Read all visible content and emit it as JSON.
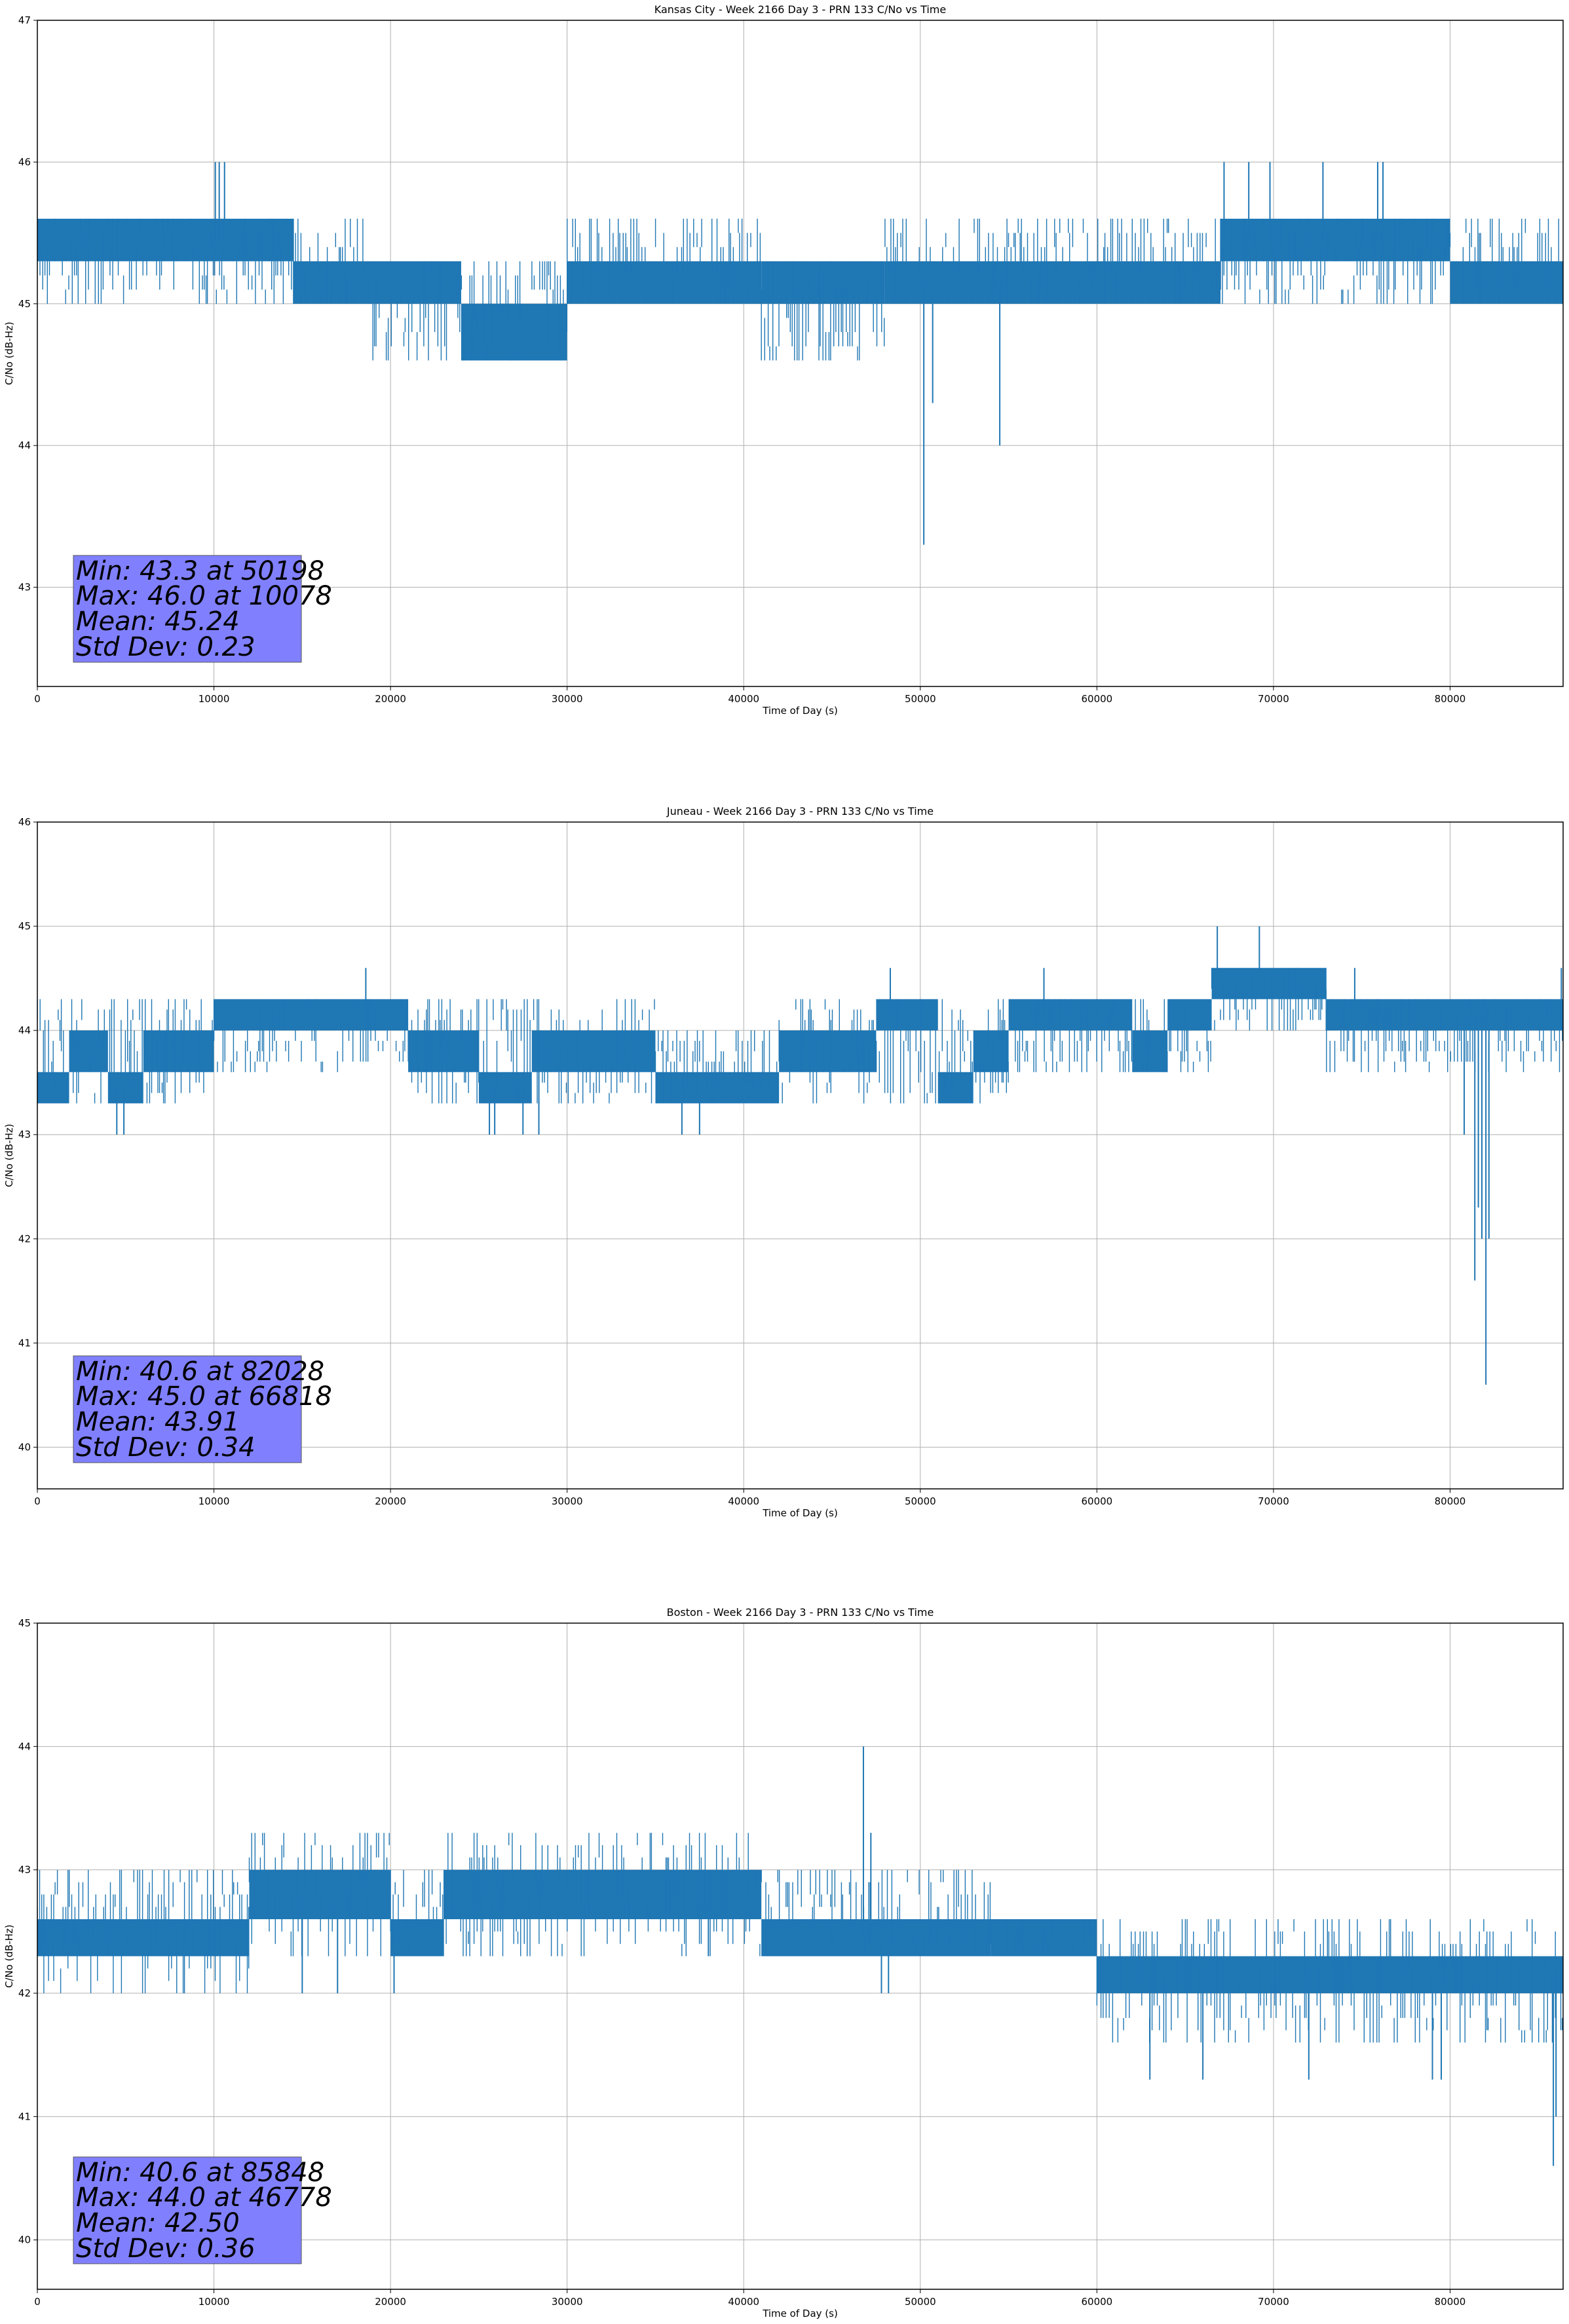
{
  "chart_data": [
    {
      "type": "line",
      "title": "Kansas City - Week 2166 Day 3 - PRN 133 C/No vs Time",
      "xlabel": "Time of Day (s)",
      "ylabel": "C/No (dB-Hz)",
      "xlim": [
        0,
        86400
      ],
      "ylim": [
        42.3,
        47
      ],
      "xticks": [
        0,
        10000,
        20000,
        30000,
        40000,
        50000,
        60000,
        70000,
        80000
      ],
      "yticks": [
        43,
        44,
        45,
        46,
        47
      ],
      "grid": true,
      "color": "#1f77b4",
      "stats_box_color": "#8080ff",
      "stats": [
        "Min: 43.3 at 50198",
        "Max: 46.0 at 10078",
        "Mean: 45.24",
        "Std Dev: 0.23"
      ],
      "series": [
        {
          "band_segments": [
            {
              "x": [
                0,
                14500
              ],
              "lo": 45.3,
              "hi": 45.6
            },
            {
              "x": [
                14500,
                19000
              ],
              "lo": 45.0,
              "hi": 45.3
            },
            {
              "x": [
                19000,
                24000
              ],
              "lo": 45.0,
              "hi": 45.3
            },
            {
              "x": [
                24000,
                30000
              ],
              "lo": 44.6,
              "hi": 45.0
            },
            {
              "x": [
                30000,
                41000
              ],
              "lo": 45.0,
              "hi": 45.3
            },
            {
              "x": [
                41000,
                48000
              ],
              "lo": 45.0,
              "hi": 45.3
            },
            {
              "x": [
                48000,
                62000
              ],
              "lo": 45.0,
              "hi": 45.3
            },
            {
              "x": [
                62000,
                67000
              ],
              "lo": 45.0,
              "hi": 45.3
            },
            {
              "x": [
                67000,
                80000
              ],
              "lo": 45.3,
              "hi": 45.6
            },
            {
              "x": [
                80000,
                86400
              ],
              "lo": 45.0,
              "hi": 45.3
            }
          ],
          "flicker_ranges": [
            {
              "x": [
                0,
                14500
              ],
              "lo": 45.0,
              "hi": 45.6
            },
            {
              "x": [
                14500,
                19000
              ],
              "lo": 45.0,
              "hi": 45.6
            },
            {
              "x": [
                19000,
                30000
              ],
              "lo": 44.6,
              "hi": 45.3
            },
            {
              "x": [
                30000,
                41000
              ],
              "lo": 45.0,
              "hi": 45.6
            },
            {
              "x": [
                41000,
                48000
              ],
              "lo": 44.6,
              "hi": 45.3
            },
            {
              "x": [
                48000,
                62000
              ],
              "lo": 45.0,
              "hi": 45.6
            },
            {
              "x": [
                62000,
                67000
              ],
              "lo": 45.0,
              "hi": 45.6
            },
            {
              "x": [
                67000,
                80000
              ],
              "lo": 45.0,
              "hi": 45.6
            },
            {
              "x": [
                80000,
                86400
              ],
              "lo": 45.0,
              "hi": 45.6
            }
          ],
          "spikes": [
            {
              "x": 10078,
              "y": 46.0
            },
            {
              "x": 10300,
              "y": 46.0
            },
            {
              "x": 10600,
              "y": 46.0
            },
            {
              "x": 50198,
              "y": 43.3
            },
            {
              "x": 50700,
              "y": 44.3
            },
            {
              "x": 54500,
              "y": 44.0
            },
            {
              "x": 67200,
              "y": 46.0
            },
            {
              "x": 68600,
              "y": 46.0
            },
            {
              "x": 69800,
              "y": 46.0
            },
            {
              "x": 72800,
              "y": 46.0
            },
            {
              "x": 75900,
              "y": 46.0
            },
            {
              "x": 76200,
              "y": 46.0
            }
          ]
        }
      ]
    },
    {
      "type": "line",
      "title": "Juneau - Week 2166 Day 3 - PRN 133 C/No vs Time",
      "xlabel": "Time of Day (s)",
      "ylabel": "C/No (dB-Hz)",
      "xlim": [
        0,
        86400
      ],
      "ylim": [
        39.6,
        46
      ],
      "xticks": [
        0,
        10000,
        20000,
        30000,
        40000,
        50000,
        60000,
        70000,
        80000
      ],
      "yticks": [
        40,
        41,
        42,
        43,
        44,
        45,
        46
      ],
      "grid": true,
      "color": "#1f77b4",
      "stats_box_color": "#8080ff",
      "stats": [
        "Min: 40.6 at 82028",
        "Max: 45.0 at 66818",
        "Mean: 43.91",
        "Std Dev: 0.34"
      ],
      "series": [
        {
          "band_segments": [
            {
              "x": [
                0,
                1800
              ],
              "lo": 43.3,
              "hi": 43.6
            },
            {
              "x": [
                1800,
                4000
              ],
              "lo": 43.6,
              "hi": 44.0
            },
            {
              "x": [
                4000,
                6000
              ],
              "lo": 43.3,
              "hi": 43.6
            },
            {
              "x": [
                6000,
                10000
              ],
              "lo": 43.6,
              "hi": 44.0
            },
            {
              "x": [
                10000,
                21000
              ],
              "lo": 44.0,
              "hi": 44.3
            },
            {
              "x": [
                21000,
                25000
              ],
              "lo": 43.6,
              "hi": 44.0
            },
            {
              "x": [
                25000,
                28000
              ],
              "lo": 43.3,
              "hi": 43.6
            },
            {
              "x": [
                28000,
                35000
              ],
              "lo": 43.6,
              "hi": 44.0
            },
            {
              "x": [
                35000,
                42000
              ],
              "lo": 43.3,
              "hi": 43.6
            },
            {
              "x": [
                42000,
                47500
              ],
              "lo": 43.6,
              "hi": 44.0
            },
            {
              "x": [
                47500,
                51000
              ],
              "lo": 44.0,
              "hi": 44.3
            },
            {
              "x": [
                51000,
                53000
              ],
              "lo": 43.3,
              "hi": 43.6
            },
            {
              "x": [
                53000,
                55000
              ],
              "lo": 43.6,
              "hi": 44.0
            },
            {
              "x": [
                55000,
                62000
              ],
              "lo": 44.0,
              "hi": 44.3
            },
            {
              "x": [
                62000,
                64000
              ],
              "lo": 43.6,
              "hi": 44.0
            },
            {
              "x": [
                64000,
                66500
              ],
              "lo": 44.0,
              "hi": 44.3
            },
            {
              "x": [
                66500,
                73000
              ],
              "lo": 44.3,
              "hi": 44.6
            },
            {
              "x": [
                73000,
                86400
              ],
              "lo": 44.0,
              "hi": 44.3
            }
          ],
          "flicker_ranges": [
            {
              "x": [
                0,
                10000
              ],
              "lo": 43.3,
              "hi": 44.3
            },
            {
              "x": [
                10000,
                21000
              ],
              "lo": 43.6,
              "hi": 44.3
            },
            {
              "x": [
                21000,
                35000
              ],
              "lo": 43.3,
              "hi": 44.3
            },
            {
              "x": [
                35000,
                42000
              ],
              "lo": 43.3,
              "hi": 44.0
            },
            {
              "x": [
                42000,
                55000
              ],
              "lo": 43.3,
              "hi": 44.3
            },
            {
              "x": [
                55000,
                66500
              ],
              "lo": 43.6,
              "hi": 44.3
            },
            {
              "x": [
                66500,
                73000
              ],
              "lo": 44.0,
              "hi": 44.6
            },
            {
              "x": [
                73000,
                86400
              ],
              "lo": 43.6,
              "hi": 44.3
            }
          ],
          "spikes": [
            {
              "x": 4500,
              "y": 43.0
            },
            {
              "x": 4900,
              "y": 43.0
            },
            {
              "x": 18600,
              "y": 44.6
            },
            {
              "x": 25600,
              "y": 43.0
            },
            {
              "x": 25900,
              "y": 43.0
            },
            {
              "x": 27500,
              "y": 43.0
            },
            {
              "x": 28400,
              "y": 43.0
            },
            {
              "x": 36500,
              "y": 43.0
            },
            {
              "x": 37500,
              "y": 43.0
            },
            {
              "x": 48300,
              "y": 44.6
            },
            {
              "x": 57000,
              "y": 44.6
            },
            {
              "x": 66818,
              "y": 45.0
            },
            {
              "x": 69200,
              "y": 45.0
            },
            {
              "x": 74600,
              "y": 44.6
            },
            {
              "x": 80800,
              "y": 43.0
            },
            {
              "x": 81400,
              "y": 41.6
            },
            {
              "x": 81600,
              "y": 42.3
            },
            {
              "x": 81800,
              "y": 42.0
            },
            {
              "x": 82028,
              "y": 40.6
            },
            {
              "x": 82200,
              "y": 42.0
            },
            {
              "x": 86300,
              "y": 44.6
            }
          ]
        }
      ]
    },
    {
      "type": "line",
      "title": "Boston - Week 2166 Day 3 - PRN 133 C/No vs Time",
      "xlabel": "Time of Day (s)",
      "ylabel": "C/No (dB-Hz)",
      "xlim": [
        0,
        86400
      ],
      "ylim": [
        39.6,
        45
      ],
      "xticks": [
        0,
        10000,
        20000,
        30000,
        40000,
        50000,
        60000,
        70000,
        80000
      ],
      "yticks": [
        40,
        41,
        42,
        43,
        44,
        45
      ],
      "grid": true,
      "color": "#1f77b4",
      "stats_box_color": "#8080ff",
      "stats": [
        "Min: 40.6 at 85848",
        "Max: 44.0 at 46778",
        "Mean: 42.50",
        "Std Dev: 0.36"
      ],
      "series": [
        {
          "band_segments": [
            {
              "x": [
                0,
                12000
              ],
              "lo": 42.3,
              "hi": 42.6
            },
            {
              "x": [
                12000,
                20000
              ],
              "lo": 42.6,
              "hi": 43.0
            },
            {
              "x": [
                20000,
                23000
              ],
              "lo": 42.3,
              "hi": 42.6
            },
            {
              "x": [
                23000,
                41000
              ],
              "lo": 42.6,
              "hi": 43.0
            },
            {
              "x": [
                41000,
                54000
              ],
              "lo": 42.3,
              "hi": 42.6
            },
            {
              "x": [
                54000,
                60000
              ],
              "lo": 42.3,
              "hi": 42.6
            },
            {
              "x": [
                60000,
                86400
              ],
              "lo": 42.0,
              "hi": 42.3
            }
          ],
          "flicker_ranges": [
            {
              "x": [
                0,
                12000
              ],
              "lo": 42.0,
              "hi": 43.0
            },
            {
              "x": [
                12000,
                20000
              ],
              "lo": 42.3,
              "hi": 43.3
            },
            {
              "x": [
                20000,
                23000
              ],
              "lo": 42.3,
              "hi": 43.0
            },
            {
              "x": [
                23000,
                41000
              ],
              "lo": 42.3,
              "hi": 43.3
            },
            {
              "x": [
                41000,
                54000
              ],
              "lo": 42.3,
              "hi": 43.0
            },
            {
              "x": [
                54000,
                60000
              ],
              "lo": 42.3,
              "hi": 42.6
            },
            {
              "x": [
                60000,
                86400
              ],
              "lo": 41.6,
              "hi": 42.6
            }
          ],
          "spikes": [
            {
              "x": 15000,
              "y": 42.0
            },
            {
              "x": 17000,
              "y": 42.0
            },
            {
              "x": 20200,
              "y": 42.0
            },
            {
              "x": 38000,
              "y": 42.3
            },
            {
              "x": 46778,
              "y": 44.0
            },
            {
              "x": 47200,
              "y": 43.3
            },
            {
              "x": 47800,
              "y": 42.0
            },
            {
              "x": 48200,
              "y": 42.0
            },
            {
              "x": 63000,
              "y": 41.3
            },
            {
              "x": 66000,
              "y": 41.3
            },
            {
              "x": 72000,
              "y": 41.3
            },
            {
              "x": 79000,
              "y": 41.3
            },
            {
              "x": 79500,
              "y": 41.3
            },
            {
              "x": 85848,
              "y": 40.6
            },
            {
              "x": 86000,
              "y": 41.0
            }
          ]
        }
      ]
    }
  ]
}
